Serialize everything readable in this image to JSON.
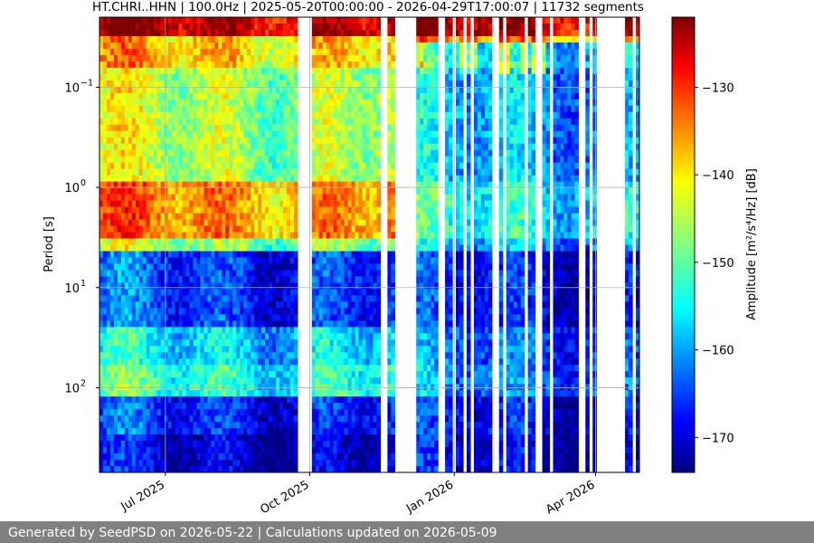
{
  "chart_data": {
    "type": "heatmap",
    "title": "HT.CHRI..HHN | 100.0Hz | 2025-05-20T00:00:00 - 2026-04-29T17:00:07 | 11732 segments",
    "xlabel": "",
    "ylabel": "Period [s]",
    "x_ticks": [
      {
        "label": "Jul 2025",
        "date": "2025-07-01"
      },
      {
        "label": "Oct 2025",
        "date": "2025-10-01"
      },
      {
        "label": "Jan 2026",
        "date": "2026-01-01"
      },
      {
        "label": "Apr 2026",
        "date": "2026-04-01"
      }
    ],
    "xlim": [
      "2025-05-20",
      "2026-04-29"
    ],
    "y_scale": "log",
    "y_inverted": true,
    "y_ticks": [
      {
        "value": 0.1,
        "base": "10",
        "exp": "−1"
      },
      {
        "value": 1,
        "base": "10",
        "exp": "0"
      },
      {
        "value": 10,
        "base": "10",
        "exp": "1"
      },
      {
        "value": 100,
        "base": "10",
        "exp": "2"
      }
    ],
    "ylim": [
      0.02,
      700
    ],
    "grid": true,
    "colorbar": {
      "label": "Amplitude [m²/s⁴/Hz] [dB]",
      "ticks": [
        -130,
        -140,
        -150,
        -160,
        -170
      ],
      "range": [
        -174,
        -122
      ],
      "colormap": "jet"
    },
    "data_gaps": [
      [
        "2025-09-23",
        "2025-10-03"
      ],
      [
        "2025-11-16",
        "2025-11-20"
      ],
      [
        "2025-11-25",
        "2025-12-07"
      ],
      [
        "2026-04-01",
        "2026-04-20"
      ]
    ]
  },
  "footer": {
    "text": "Generated by SeedPSD on 2026-05-22 | Calculations updated on 2026-05-09"
  }
}
